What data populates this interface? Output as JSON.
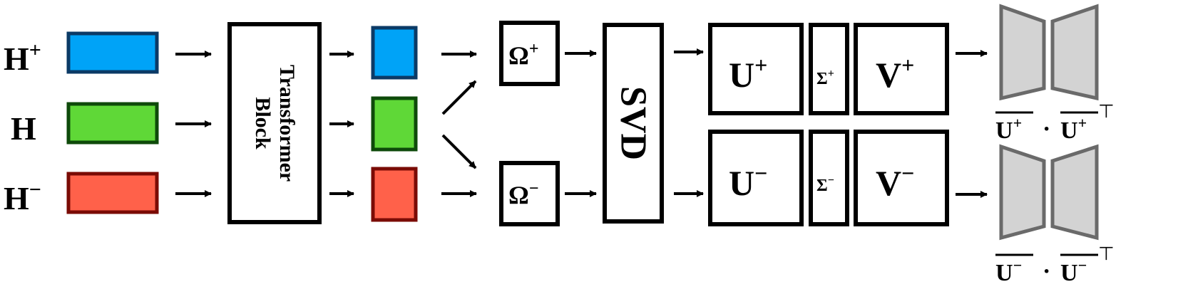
{
  "inputs": {
    "h_plus": {
      "base": "H",
      "sup": "+"
    },
    "h": {
      "base": "H"
    },
    "h_minus": {
      "base": "H",
      "sup": "−"
    }
  },
  "transformer": {
    "line1": "Transformer",
    "line2": "Block"
  },
  "omega_plus": {
    "base": "Ω",
    "sup": "+"
  },
  "omega_minus": {
    "base": "Ω",
    "sup": "−"
  },
  "svd": {
    "label": "SVD"
  },
  "upper": {
    "u": {
      "base": "U",
      "sup": "+"
    },
    "sigma": {
      "base": "Σ",
      "sup": "+"
    },
    "v": {
      "base": "V",
      "sup": "+"
    }
  },
  "lower": {
    "u": {
      "base": "U",
      "sup": "−"
    },
    "sigma": {
      "base": "Σ",
      "sup": "−"
    },
    "v": {
      "base": "V",
      "sup": "−"
    }
  },
  "projection_plus": {
    "base": "U",
    "sup": "+",
    "dot": "·",
    "transpose": "⊤"
  },
  "projection_minus": {
    "base": "U",
    "sup": "−",
    "dot": "·",
    "transpose": "⊤"
  },
  "colors": {
    "blue_fill": "#00A3F7",
    "blue_stroke": "#0B3A66",
    "green_fill": "#5FD837",
    "green_stroke": "#0E4A0A",
    "red_fill": "#FF614A",
    "red_stroke": "#7A0B05",
    "bottleneck_fill": "#D3D3D3",
    "bottleneck_stroke": "#6A6A6A"
  }
}
